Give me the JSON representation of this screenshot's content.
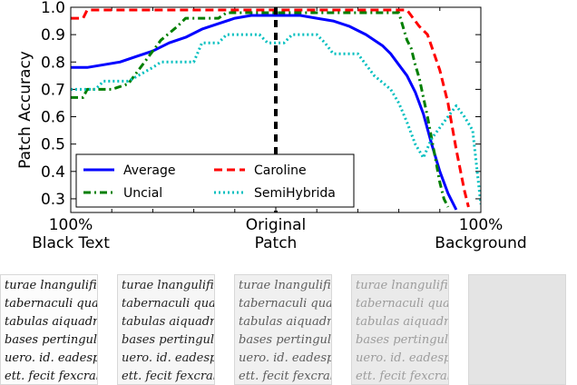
{
  "chart_data": {
    "type": "line",
    "ylabel": "Patch Accuracy",
    "xlabel": "",
    "ylim": [
      0.25,
      1.0
    ],
    "xlim": [
      0,
      100
    ],
    "yticks": [
      0.3,
      0.4,
      0.5,
      0.6,
      0.7,
      0.8,
      0.9,
      1.0
    ],
    "ytick_labels": [
      "0.3",
      "0.4",
      "0.5",
      "0.6",
      "0.7",
      "0.8",
      "0.9",
      "1.0"
    ],
    "xtick_labels": [
      {
        "line1": "100%",
        "line2": "Black Text",
        "x": 0
      },
      {
        "line1": "Original",
        "line2": "Patch",
        "x": 50
      },
      {
        "line1": "100%",
        "line2": "Background",
        "x": 100
      }
    ],
    "legend_position": "lower-left",
    "vline_x": 50,
    "series": [
      {
        "name": "Average",
        "color": "#0000ff",
        "style": "solid",
        "points": [
          [
            0,
            0.78
          ],
          [
            4,
            0.78
          ],
          [
            8,
            0.79
          ],
          [
            12,
            0.8
          ],
          [
            16,
            0.82
          ],
          [
            20,
            0.84
          ],
          [
            24,
            0.87
          ],
          [
            28,
            0.89
          ],
          [
            32,
            0.92
          ],
          [
            36,
            0.94
          ],
          [
            40,
            0.96
          ],
          [
            44,
            0.97
          ],
          [
            48,
            0.97
          ],
          [
            52,
            0.97
          ],
          [
            56,
            0.97
          ],
          [
            60,
            0.96
          ],
          [
            64,
            0.95
          ],
          [
            68,
            0.93
          ],
          [
            72,
            0.9
          ],
          [
            76,
            0.86
          ],
          [
            78,
            0.83
          ],
          [
            80,
            0.79
          ],
          [
            82,
            0.75
          ],
          [
            84,
            0.69
          ],
          [
            86,
            0.61
          ],
          [
            88,
            0.5
          ],
          [
            90,
            0.4
          ],
          [
            92,
            0.32
          ],
          [
            94,
            0.26
          ]
        ]
      },
      {
        "name": "Caroline",
        "color": "#ff0000",
        "style": "dashed",
        "points": [
          [
            0,
            0.96
          ],
          [
            3,
            0.96
          ],
          [
            4,
            0.99
          ],
          [
            82,
            0.99
          ],
          [
            85,
            0.93
          ],
          [
            87,
            0.9
          ],
          [
            90,
            0.77
          ],
          [
            92,
            0.65
          ],
          [
            94,
            0.48
          ],
          [
            96,
            0.33
          ],
          [
            97,
            0.27
          ]
        ]
      },
      {
        "name": "Uncial",
        "color": "#007f00",
        "style": "dashdot",
        "points": [
          [
            0,
            0.67
          ],
          [
            3,
            0.67
          ],
          [
            4,
            0.7
          ],
          [
            10,
            0.7
          ],
          [
            14,
            0.72
          ],
          [
            18,
            0.8
          ],
          [
            22,
            0.88
          ],
          [
            26,
            0.93
          ],
          [
            28,
            0.96
          ],
          [
            36,
            0.96
          ],
          [
            38,
            0.98
          ],
          [
            80,
            0.98
          ],
          [
            81,
            0.93
          ],
          [
            82,
            0.88
          ],
          [
            83,
            0.85
          ],
          [
            84,
            0.79
          ],
          [
            85,
            0.74
          ],
          [
            86,
            0.67
          ],
          [
            87,
            0.6
          ],
          [
            88,
            0.52
          ],
          [
            89,
            0.44
          ],
          [
            90,
            0.36
          ],
          [
            91,
            0.3
          ],
          [
            92,
            0.27
          ]
        ]
      },
      {
        "name": "SemiHybrida",
        "color": "#00bfbf",
        "style": "dotted",
        "points": [
          [
            0,
            0.7
          ],
          [
            6,
            0.7
          ],
          [
            8,
            0.73
          ],
          [
            14,
            0.73
          ],
          [
            20,
            0.78
          ],
          [
            22,
            0.8
          ],
          [
            30,
            0.8
          ],
          [
            32,
            0.87
          ],
          [
            36,
            0.87
          ],
          [
            38,
            0.9
          ],
          [
            46,
            0.9
          ],
          [
            48,
            0.87
          ],
          [
            52,
            0.87
          ],
          [
            54,
            0.9
          ],
          [
            60,
            0.9
          ],
          [
            62,
            0.87
          ],
          [
            64,
            0.83
          ],
          [
            70,
            0.83
          ],
          [
            74,
            0.75
          ],
          [
            78,
            0.7
          ],
          [
            80,
            0.65
          ],
          [
            82,
            0.58
          ],
          [
            84,
            0.5
          ],
          [
            86,
            0.45
          ],
          [
            88,
            0.52
          ],
          [
            90,
            0.56
          ],
          [
            92,
            0.6
          ],
          [
            94,
            0.64
          ],
          [
            96,
            0.6
          ],
          [
            98,
            0.55
          ],
          [
            100,
            0.28
          ]
        ]
      }
    ]
  },
  "patches": {
    "items": [
      {
        "tone": "#111111",
        "lines": [
          "turae lnangulifi",
          "tabernaculi quae",
          "tabulas aiquadra",
          "bases pertingulat",
          "uero. id. eadespa",
          "ett. fecit fexcrabul"
        ]
      },
      {
        "tone": "#1e1e1e",
        "lines": [
          "turae lnangulifi",
          "tabernaculi quae",
          "tabulas aiquadra",
          "bases pertingulat",
          "uero. id. eadespa",
          "ett. fecit fexcrabul"
        ]
      },
      {
        "tone": "#5c5c5c",
        "lines": [
          "turae lnangulifi",
          "tabernaculi quae",
          "tabulas aiquadra",
          "bases pertingulat",
          "uero. id. eadespa",
          "ett. fecit fexcrabul"
        ]
      },
      {
        "tone": "#9c9c9c",
        "lines": [
          "turae lnangulifi",
          "tabernaculi quae",
          "tabulas aiquadra",
          "bases pertingulat",
          "uero. id. eadespa",
          "ett. fecit fexcrabul"
        ]
      },
      {
        "tone": "#d6d6d6",
        "lines": []
      }
    ]
  }
}
